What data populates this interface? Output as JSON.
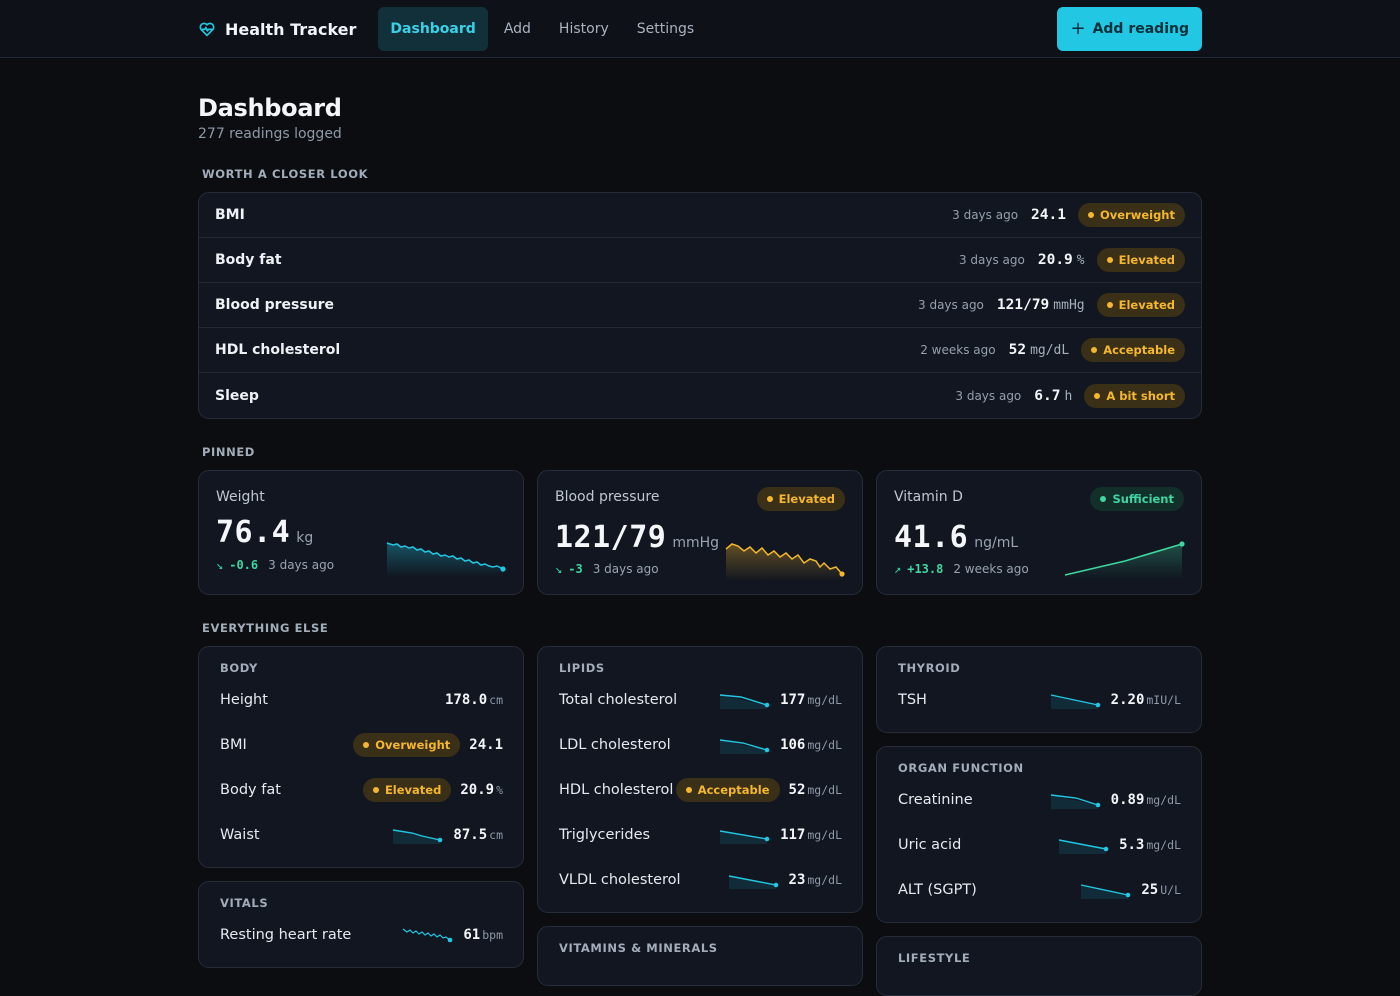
{
  "nav": {
    "brand": "Health Tracker",
    "items": [
      {
        "label": "Dashboard",
        "active": true
      },
      {
        "label": "Add",
        "active": false
      },
      {
        "label": "History",
        "active": false
      },
      {
        "label": "Settings",
        "active": false
      }
    ],
    "add_button": "Add reading",
    "accent_color": "#22c7e3"
  },
  "page": {
    "title": "Dashboard",
    "subtitle": "277 readings logged"
  },
  "closer": {
    "label": "WORTH A CLOSER LOOK",
    "rows": [
      {
        "name": "BMI",
        "when": "3 days ago",
        "value": "24.1",
        "unit": "",
        "status": "Overweight"
      },
      {
        "name": "Body fat",
        "when": "3 days ago",
        "value": "20.9",
        "unit": "%",
        "status": "Elevated"
      },
      {
        "name": "Blood pressure",
        "when": "3 days ago",
        "value": "121/79",
        "unit": "mmHg",
        "status": "Elevated"
      },
      {
        "name": "HDL cholesterol",
        "when": "2 weeks ago",
        "value": "52",
        "unit": "mg/dL",
        "status": "Acceptable"
      },
      {
        "name": "Sleep",
        "when": "3 days ago",
        "value": "6.7",
        "unit": "h",
        "status": "A bit short"
      }
    ]
  },
  "pinned": {
    "label": "PINNED",
    "cards": [
      {
        "title": "Weight",
        "value": "76.4",
        "unit": "kg",
        "delta": "-0.6",
        "when": "3 days ago",
        "status": "",
        "trend": "down",
        "spark_color": "#22c7e3"
      },
      {
        "title": "Blood pressure",
        "value": "121/79",
        "unit": "mmHg",
        "delta": "-3",
        "when": "3 days ago",
        "status": "Elevated",
        "trend": "down",
        "spark_color": "#f5b72d"
      },
      {
        "title": "Vitamin D",
        "value": "41.6",
        "unit": "ng/mL",
        "delta": "+13.8",
        "when": "2 weeks ago",
        "status": "Sufficient",
        "trend": "up",
        "spark_color": "#3ed6a1"
      }
    ]
  },
  "else": {
    "label": "EVERYTHING ELSE",
    "body": {
      "title": "BODY",
      "rows": [
        {
          "name": "Height",
          "value": "178.0",
          "unit": "cm"
        },
        {
          "name": "BMI",
          "status": "Overweight",
          "value": "24.1",
          "unit": ""
        },
        {
          "name": "Body fat",
          "status": "Elevated",
          "value": "20.9",
          "unit": "%"
        },
        {
          "name": "Waist",
          "value": "87.5",
          "unit": "cm"
        }
      ]
    },
    "vitals": {
      "title": "VITALS",
      "rows": [
        {
          "name": "Resting heart rate",
          "value": "61",
          "unit": "bpm"
        }
      ]
    },
    "lipids": {
      "title": "LIPIDS",
      "rows": [
        {
          "name": "Total cholesterol",
          "value": "177",
          "unit": "mg/dL"
        },
        {
          "name": "LDL cholesterol",
          "value": "106",
          "unit": "mg/dL"
        },
        {
          "name": "HDL cholesterol",
          "status": "Acceptable",
          "value": "52",
          "unit": "mg/dL"
        },
        {
          "name": "Triglycerides",
          "value": "117",
          "unit": "mg/dL"
        },
        {
          "name": "VLDL cholesterol",
          "value": "23",
          "unit": "mg/dL"
        }
      ]
    },
    "vitamins": {
      "title": "VITAMINS & MINERALS"
    },
    "thyroid": {
      "title": "THYROID",
      "rows": [
        {
          "name": "TSH",
          "value": "2.20",
          "unit": "mIU/L"
        }
      ]
    },
    "organ": {
      "title": "ORGAN FUNCTION",
      "rows": [
        {
          "name": "Creatinine",
          "value": "0.89",
          "unit": "mg/dL"
        },
        {
          "name": "Uric acid",
          "value": "5.3",
          "unit": "mg/dL"
        },
        {
          "name": "ALT (SGPT)",
          "value": "25",
          "unit": "U/L"
        }
      ]
    },
    "lifestyle": {
      "title": "LIFESTYLE"
    }
  },
  "colors": {
    "warning": "#f5b72d",
    "good": "#3ed6a1",
    "accent": "#22c7e3"
  }
}
